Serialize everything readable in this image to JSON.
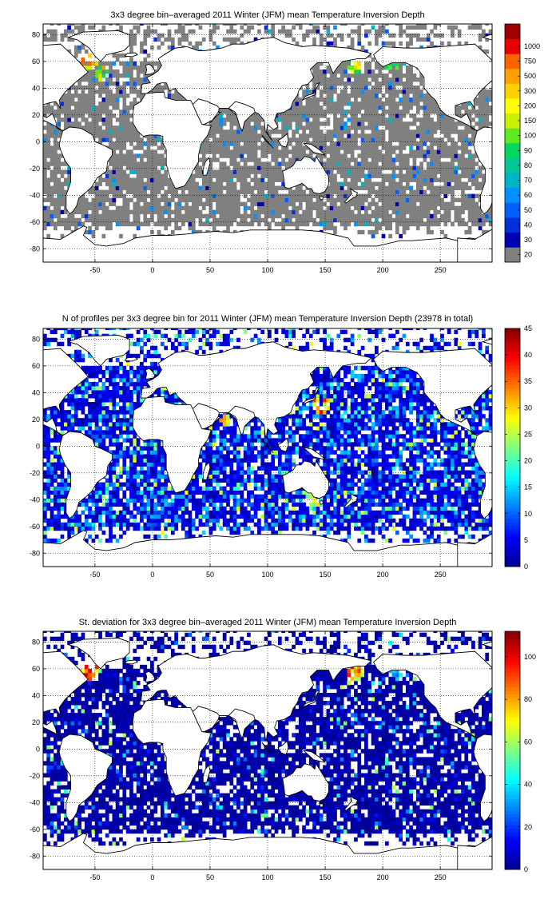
{
  "colormaps": {
    "jet": [
      "#00008f",
      "#0000ff",
      "#0080ff",
      "#00ffff",
      "#80ff80",
      "#ffff00",
      "#ff8000",
      "#ff0000",
      "#800000"
    ],
    "discrete": [
      "#808080",
      "#0000b4",
      "#0030d8",
      "#0060ff",
      "#0090ff",
      "#00b4c8",
      "#00c898",
      "#00d860",
      "#60e820",
      "#c8f000",
      "#ffff00",
      "#ffd000",
      "#ffa000",
      "#ff6000",
      "#e80000",
      "#a00000"
    ],
    "land": "#ffffff",
    "coast": "#000000"
  },
  "chart_data": [
    {
      "type": "heatmap",
      "title": "3x3 degree bin–averaged 2011 Winter (JFM) mean Temperature Inversion Depth",
      "x_ticks": [
        -50,
        0,
        50,
        100,
        150,
        200,
        250
      ],
      "y_ticks": [
        -80,
        -60,
        -40,
        -20,
        0,
        20,
        40,
        60,
        80
      ],
      "xlim": [
        -95,
        295
      ],
      "ylim": [
        -90,
        88
      ],
      "grid": true,
      "colorbar": {
        "kind": "discrete",
        "ticks": [
          "20",
          "30",
          "40",
          "50",
          "60",
          "70",
          "80",
          "90",
          "100",
          "150",
          "200",
          "300",
          "500",
          "750",
          "1000"
        ]
      },
      "hotspots": [
        {
          "lon": -57,
          "lat": 58,
          "r": 8,
          "value": 14
        },
        {
          "lon": -45,
          "lat": 50,
          "r": 6,
          "value": 12
        },
        {
          "lon": 175,
          "lat": 56,
          "r": 8,
          "value": 11
        },
        {
          "lon": 205,
          "lat": 57,
          "r": 7,
          "value": 9
        },
        {
          "lon": 75,
          "lat": -67,
          "r": 4,
          "value": 10
        }
      ]
    },
    {
      "type": "heatmap",
      "title": "N of profiles per 3x3 degree bin for 2011 Winter (JFM) mean Temperature Inversion Depth  (23978 in total)",
      "x_ticks": [
        -50,
        0,
        50,
        100,
        150,
        200,
        250
      ],
      "y_ticks": [
        -80,
        -60,
        -40,
        -20,
        0,
        20,
        40,
        60,
        80
      ],
      "xlim": [
        -95,
        295
      ],
      "ylim": [
        -90,
        88
      ],
      "grid": true,
      "colorbar": {
        "kind": "continuous",
        "ticks": [
          "0",
          "5",
          "10",
          "15",
          "20",
          "25",
          "30",
          "35",
          "40",
          "45"
        ],
        "range": [
          0,
          45
        ]
      },
      "hotspots": [
        {
          "lon": 145,
          "lat": 30,
          "r": 8,
          "value": 40
        },
        {
          "lon": 62,
          "lat": 18,
          "r": 5,
          "value": 38
        },
        {
          "lon": 140,
          "lat": -42,
          "r": 8,
          "value": 30
        }
      ]
    },
    {
      "type": "heatmap",
      "title": "St. deviation for 3x3 degree bin–averaged 2011 Winter (JFM) mean Temperature Inversion Depth",
      "x_ticks": [
        -50,
        0,
        50,
        100,
        150,
        200,
        250
      ],
      "y_ticks": [
        -80,
        -60,
        -40,
        -20,
        0,
        20,
        40,
        60,
        80
      ],
      "xlim": [
        -95,
        295
      ],
      "ylim": [
        -90,
        88
      ],
      "grid": true,
      "colorbar": {
        "kind": "continuous",
        "ticks": [
          "0",
          "20",
          "40",
          "60",
          "80",
          "100"
        ],
        "range": [
          0,
          112
        ]
      },
      "hotspots": [
        {
          "lon": -57,
          "lat": 58,
          "r": 9,
          "value": 110
        },
        {
          "lon": 175,
          "lat": 57,
          "r": 8,
          "value": 105
        },
        {
          "lon": 210,
          "lat": 55,
          "r": 6,
          "value": 45
        },
        {
          "lon": 75,
          "lat": -67,
          "r": 4,
          "value": 100
        }
      ]
    }
  ]
}
